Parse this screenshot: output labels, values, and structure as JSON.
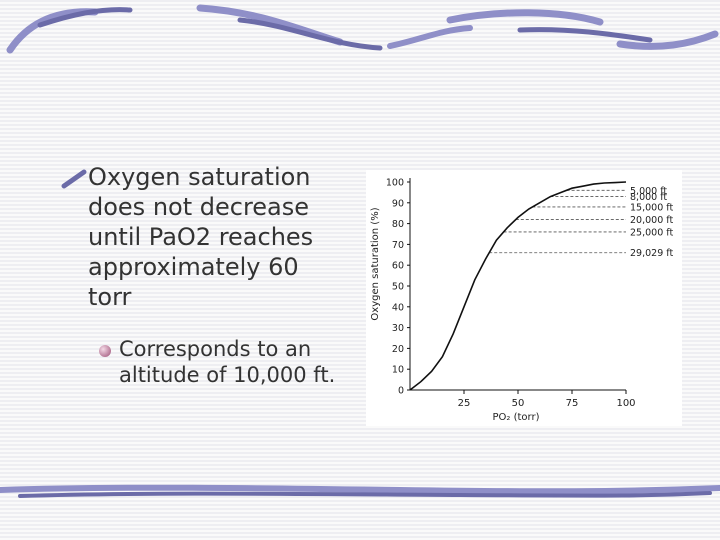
{
  "slide": {
    "main_bullet": "Oxygen saturation\ndoes not decrease\nuntil PaO2 reaches\napproximately 60\ntorr",
    "sub_bullet": "Corresponds to an\naltitude of 10,000 ft."
  },
  "colors": {
    "accent": "#8f8fc8",
    "accent_dark": "#6b6ba8",
    "text": "#333333",
    "curve": "#111111"
  },
  "icons": {
    "main_bullet": "pencil-stroke-bullet-icon",
    "sub_bullet": "sphere-bullet-icon"
  },
  "chart_data": {
    "type": "line",
    "xlabel": "PO₂ (torr)",
    "ylabel": "Oxygen saturation (%)",
    "xlim": [
      0,
      100
    ],
    "ylim": [
      0,
      100
    ],
    "x_ticks": [
      "25",
      "50",
      "75",
      "100"
    ],
    "y_ticks": [
      "0",
      "10",
      "20",
      "30",
      "40",
      "50",
      "60",
      "70",
      "80",
      "90",
      "100"
    ],
    "grid": false,
    "series": [
      {
        "x": [
          0,
          5,
          10,
          15,
          20,
          25,
          30,
          35,
          40,
          45,
          50,
          55,
          60,
          65,
          70,
          75,
          80,
          85,
          90,
          95,
          100
        ],
        "y": [
          0,
          4,
          9,
          16,
          27,
          40,
          53,
          63,
          72,
          78,
          83,
          87,
          90,
          93,
          95,
          97,
          98,
          99,
          99.5,
          99.7,
          100
        ]
      }
    ],
    "annotations": [
      {
        "label": "5,000 ft",
        "y": 96
      },
      {
        "label": "8,000 ft",
        "y": 93
      },
      {
        "label": "15,000 ft",
        "y": 88
      },
      {
        "label": "20,000 ft",
        "y": 82
      },
      {
        "label": "25,000 ft",
        "y": 76
      },
      {
        "label": "29,029 ft",
        "y": 66
      }
    ]
  }
}
